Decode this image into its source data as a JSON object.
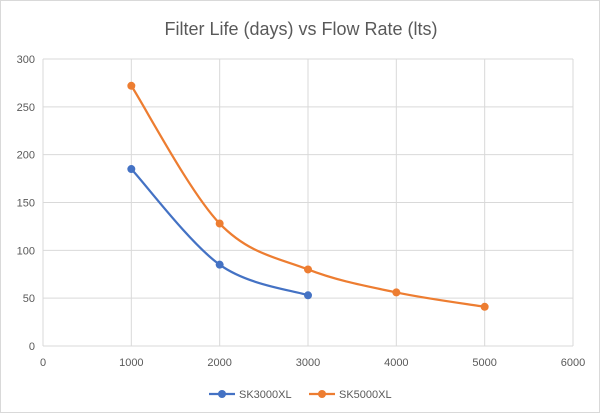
{
  "chart_data": {
    "type": "line",
    "title": "Filter Life (days) vs Flow Rate (lts)",
    "xlabel": "",
    "ylabel": "",
    "xlim": [
      0,
      6000
    ],
    "ylim": [
      0,
      300
    ],
    "x_ticks": [
      0,
      1000,
      2000,
      3000,
      4000,
      5000,
      6000
    ],
    "y_ticks": [
      0,
      50,
      100,
      150,
      200,
      250,
      300
    ],
    "grid": "vertical and horizontal",
    "smooth": true,
    "legend_position": "bottom",
    "series": [
      {
        "name": "SK3000XL",
        "color": "#4472c4",
        "x": [
          1000,
          2000,
          3000
        ],
        "values": [
          185,
          85,
          53
        ]
      },
      {
        "name": "SK5000XL",
        "color": "#ed7d31",
        "x": [
          1000,
          2000,
          3000,
          4000,
          5000
        ],
        "values": [
          272,
          128,
          80,
          56,
          41
        ]
      }
    ]
  }
}
